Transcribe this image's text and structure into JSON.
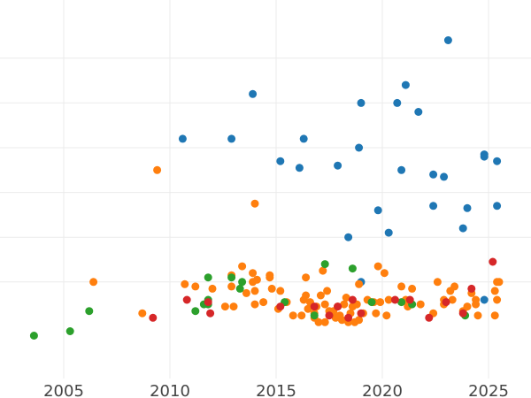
{
  "chart_data": {
    "type": "scatter",
    "title": "",
    "xlabel": "",
    "ylabel": "",
    "xlim": [
      2002,
      2027
    ],
    "ylim": [
      -1,
      7.3
    ],
    "x_ticks": [
      2005,
      2010,
      2015,
      2020,
      2025
    ],
    "x_tick_labels": [
      "2005",
      "2010",
      "2015",
      "2020",
      "2025"
    ],
    "y_gridlines": [
      1,
      2,
      3,
      4,
      5,
      6
    ],
    "grid": true,
    "legend": "none",
    "series": [
      {
        "name": "blue",
        "color": "#1f77b4",
        "points": [
          [
            2010.6,
            4.2
          ],
          [
            2012.9,
            4.2
          ],
          [
            2013.9,
            5.2
          ],
          [
            2015.2,
            3.7
          ],
          [
            2016.1,
            3.55
          ],
          [
            2016.3,
            4.2
          ],
          [
            2017.9,
            3.6
          ],
          [
            2018.4,
            2.0
          ],
          [
            2018.9,
            4.0
          ],
          [
            2019.0,
            5.0
          ],
          [
            2019.0,
            1.0
          ],
          [
            2019.8,
            2.6
          ],
          [
            2020.3,
            2.1
          ],
          [
            2020.7,
            5.0
          ],
          [
            2020.9,
            3.5
          ],
          [
            2021.1,
            5.4
          ],
          [
            2021.7,
            4.8
          ],
          [
            2022.4,
            3.4
          ],
          [
            2022.4,
            2.7
          ],
          [
            2022.9,
            3.35
          ],
          [
            2023.1,
            6.4
          ],
          [
            2023.8,
            2.2
          ],
          [
            2024.0,
            2.65
          ],
          [
            2024.8,
            3.8
          ],
          [
            2024.8,
            3.85
          ],
          [
            2024.8,
            0.6
          ],
          [
            2025.4,
            2.7
          ],
          [
            2025.4,
            3.7
          ]
        ]
      },
      {
        "name": "orange",
        "color": "#ff7f0e",
        "points": [
          [
            2006.4,
            1.0
          ],
          [
            2008.7,
            0.3
          ],
          [
            2009.4,
            3.5
          ],
          [
            2010.7,
            0.95
          ],
          [
            2011.2,
            0.9
          ],
          [
            2012.0,
            0.85
          ],
          [
            2012.6,
            0.45
          ],
          [
            2012.9,
            0.9
          ],
          [
            2012.9,
            1.15
          ],
          [
            2013.0,
            0.45
          ],
          [
            2013.4,
            1.35
          ],
          [
            2013.6,
            0.75
          ],
          [
            2013.9,
            1.0
          ],
          [
            2013.9,
            1.2
          ],
          [
            2014.0,
            0.5
          ],
          [
            2014.0,
            2.75
          ],
          [
            2014.0,
            0.8
          ],
          [
            2014.1,
            1.05
          ],
          [
            2014.4,
            0.55
          ],
          [
            2014.7,
            1.15
          ],
          [
            2014.7,
            1.1
          ],
          [
            2014.8,
            0.85
          ],
          [
            2015.1,
            0.4
          ],
          [
            2015.2,
            0.8
          ],
          [
            2015.5,
            0.55
          ],
          [
            2015.8,
            0.25
          ],
          [
            2016.2,
            0.25
          ],
          [
            2016.3,
            0.6
          ],
          [
            2016.4,
            0.7
          ],
          [
            2016.4,
            1.1
          ],
          [
            2016.5,
            0.4
          ],
          [
            2016.6,
            0.55
          ],
          [
            2016.8,
            0.3
          ],
          [
            2016.8,
            0.2
          ],
          [
            2016.9,
            0.45
          ],
          [
            2017.0,
            0.1
          ],
          [
            2017.1,
            0.7
          ],
          [
            2017.2,
            1.25
          ],
          [
            2017.3,
            0.1
          ],
          [
            2017.3,
            0.5
          ],
          [
            2017.4,
            0.8
          ],
          [
            2017.5,
            0.35
          ],
          [
            2017.7,
            0.35
          ],
          [
            2017.8,
            0.2
          ],
          [
            2017.9,
            0.45
          ],
          [
            2018.0,
            0.25
          ],
          [
            2018.1,
            0.15
          ],
          [
            2018.2,
            0.5
          ],
          [
            2018.3,
            0.65
          ],
          [
            2018.4,
            0.1
          ],
          [
            2018.5,
            0.3
          ],
          [
            2018.6,
            0.45
          ],
          [
            2018.7,
            0.1
          ],
          [
            2018.8,
            0.5
          ],
          [
            2018.9,
            0.15
          ],
          [
            2018.9,
            0.95
          ],
          [
            2019.1,
            0.3
          ],
          [
            2019.3,
            0.6
          ],
          [
            2019.6,
            0.55
          ],
          [
            2019.7,
            0.3
          ],
          [
            2019.8,
            1.35
          ],
          [
            2019.9,
            0.55
          ],
          [
            2020.1,
            1.2
          ],
          [
            2020.2,
            0.25
          ],
          [
            2020.3,
            0.6
          ],
          [
            2020.9,
            0.9
          ],
          [
            2021.1,
            0.6
          ],
          [
            2021.2,
            0.45
          ],
          [
            2021.4,
            0.85
          ],
          [
            2021.8,
            0.5
          ],
          [
            2022.4,
            0.3
          ],
          [
            2022.6,
            1.0
          ],
          [
            2022.9,
            0.6
          ],
          [
            2022.9,
            0.5
          ],
          [
            2023.2,
            0.8
          ],
          [
            2023.3,
            0.6
          ],
          [
            2023.4,
            0.9
          ],
          [
            2023.8,
            0.35
          ],
          [
            2024.0,
            0.45
          ],
          [
            2024.2,
            0.75
          ],
          [
            2024.4,
            0.5
          ],
          [
            2024.4,
            0.6
          ],
          [
            2024.5,
            0.25
          ],
          [
            2025.3,
            0.8
          ],
          [
            2025.3,
            0.25
          ],
          [
            2025.4,
            1.0
          ],
          [
            2025.4,
            0.6
          ],
          [
            2025.5,
            1.0
          ]
        ]
      },
      {
        "name": "green",
        "color": "#2ca02c",
        "points": [
          [
            2003.6,
            -0.2
          ],
          [
            2005.3,
            -0.1
          ],
          [
            2006.2,
            0.35
          ],
          [
            2011.2,
            0.35
          ],
          [
            2011.6,
            0.5
          ],
          [
            2011.8,
            1.1
          ],
          [
            2011.8,
            0.6
          ],
          [
            2011.8,
            0.5
          ],
          [
            2012.9,
            1.1
          ],
          [
            2013.3,
            0.85
          ],
          [
            2013.4,
            1.0
          ],
          [
            2015.4,
            0.55
          ],
          [
            2016.8,
            0.25
          ],
          [
            2017.3,
            1.4
          ],
          [
            2018.6,
            1.3
          ],
          [
            2019.5,
            0.55
          ],
          [
            2020.9,
            0.55
          ],
          [
            2021.4,
            0.5
          ],
          [
            2023.9,
            0.25
          ]
        ]
      },
      {
        "name": "red",
        "color": "#d62728",
        "points": [
          [
            2009.2,
            0.2
          ],
          [
            2010.8,
            0.6
          ],
          [
            2011.8,
            0.55
          ],
          [
            2011.9,
            0.3
          ],
          [
            2015.2,
            0.45
          ],
          [
            2016.8,
            0.45
          ],
          [
            2017.5,
            0.25
          ],
          [
            2017.9,
            0.45
          ],
          [
            2018.4,
            0.2
          ],
          [
            2018.6,
            0.6
          ],
          [
            2019.0,
            0.3
          ],
          [
            2020.6,
            0.6
          ],
          [
            2021.3,
            0.6
          ],
          [
            2022.2,
            0.2
          ],
          [
            2023.0,
            0.55
          ],
          [
            2023.8,
            0.3
          ],
          [
            2024.2,
            0.85
          ],
          [
            2025.2,
            1.45
          ]
        ]
      }
    ]
  }
}
